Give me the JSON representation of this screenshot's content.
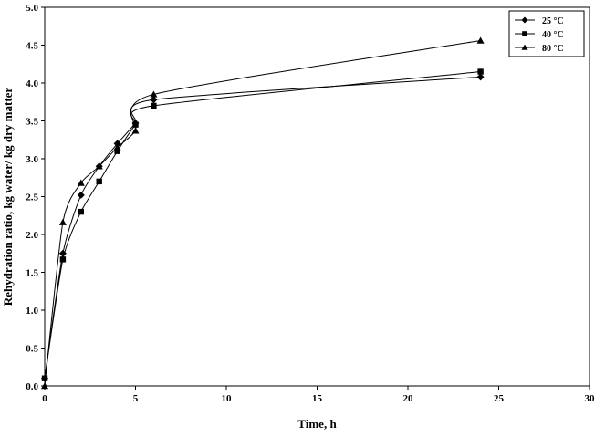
{
  "chart_data": {
    "type": "line",
    "xlabel": "Time, h",
    "ylabel": "Rehydration ratio, kg water/ kg dry matter",
    "xlim": [
      0,
      30
    ],
    "ylim": [
      0,
      5.0
    ],
    "x_ticks": [
      "0",
      "5",
      "10",
      "15",
      "20",
      "25",
      "30"
    ],
    "y_ticks": [
      "0.0",
      "0.5",
      "1.0",
      "1.5",
      "2.0",
      "2.5",
      "3.0",
      "3.5",
      "4.0",
      "4.5",
      "5.0"
    ],
    "grid": false,
    "legend_position": "top-right",
    "series": [
      {
        "name": "25 °C",
        "marker": "diamond",
        "x": [
          0,
          1,
          2,
          3,
          4,
          5,
          6,
          24
        ],
        "y": [
          0.1,
          1.75,
          2.52,
          2.9,
          3.2,
          3.47,
          3.78,
          4.08
        ]
      },
      {
        "name": "40 °C",
        "marker": "square",
        "x": [
          0,
          1,
          2,
          3,
          4,
          5,
          6,
          24
        ],
        "y": [
          0.1,
          1.67,
          2.3,
          2.7,
          3.1,
          3.45,
          3.7,
          4.15
        ]
      },
      {
        "name": "80 °C",
        "marker": "triangle",
        "x": [
          0,
          1,
          2,
          3,
          4,
          5,
          6,
          24
        ],
        "y": [
          0.0,
          2.16,
          2.68,
          2.9,
          3.15,
          3.37,
          3.85,
          4.56
        ]
      }
    ]
  }
}
